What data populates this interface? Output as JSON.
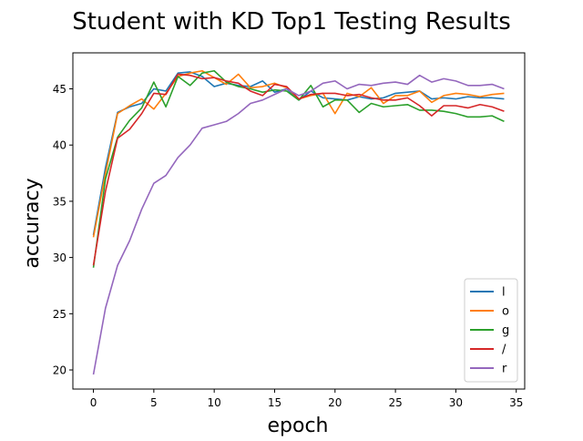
{
  "chart_data": {
    "type": "line",
    "title": "Student with KD Top1 Testing Results",
    "xlabel": "epoch",
    "ylabel": "accuracy",
    "xlim": [
      -1.7,
      35.7
    ],
    "ylim": [
      18.3,
      48.2
    ],
    "xticks": [
      0,
      5,
      10,
      15,
      20,
      25,
      30,
      35
    ],
    "yticks": [
      20,
      25,
      30,
      35,
      40,
      45
    ],
    "grid": false,
    "legend_position": "lower-right",
    "x": [
      0,
      1,
      2,
      3,
      4,
      5,
      6,
      7,
      8,
      9,
      10,
      11,
      12,
      13,
      14,
      15,
      16,
      17,
      18,
      19,
      20,
      21,
      22,
      23,
      24,
      25,
      26,
      27,
      28,
      29,
      30,
      31,
      32,
      33,
      34
    ],
    "series": [
      {
        "name": "l",
        "color": "#1f77b4",
        "values": [
          32.0,
          38.0,
          42.9,
          43.4,
          43.7,
          45.0,
          44.8,
          46.4,
          46.5,
          46.1,
          45.2,
          45.5,
          45.3,
          45.2,
          45.7,
          44.7,
          45.0,
          44.0,
          44.8,
          44.2,
          44.1,
          44.0,
          44.3,
          44.1,
          44.2,
          44.6,
          44.7,
          44.8,
          44.1,
          44.2,
          44.1,
          44.3,
          44.2,
          44.2,
          44.1
        ]
      },
      {
        "name": "o",
        "color": "#ff7f0e",
        "values": [
          31.8,
          37.5,
          42.8,
          43.5,
          44.1,
          43.2,
          44.6,
          46.1,
          46.4,
          46.6,
          46.0,
          45.4,
          46.3,
          45.1,
          45.2,
          45.5,
          45.1,
          44.1,
          44.4,
          44.6,
          42.8,
          44.6,
          44.3,
          45.1,
          43.7,
          44.4,
          44.4,
          44.8,
          43.8,
          44.4,
          44.6,
          44.5,
          44.3,
          44.5,
          44.6
        ]
      },
      {
        "name": "g",
        "color": "#2ca02c",
        "values": [
          29.1,
          37.0,
          40.7,
          42.2,
          43.3,
          45.6,
          43.4,
          46.1,
          45.3,
          46.4,
          46.6,
          45.6,
          45.2,
          45.0,
          44.7,
          44.9,
          44.8,
          44.0,
          45.3,
          43.4,
          44.0,
          44.0,
          42.9,
          43.7,
          43.4,
          43.5,
          43.6,
          43.1,
          43.1,
          43.0,
          42.8,
          42.5,
          42.5,
          42.6,
          42.1
        ]
      },
      {
        "name": "/",
        "color": "#d62728",
        "values": [
          29.3,
          35.9,
          40.6,
          41.4,
          42.8,
          44.6,
          44.5,
          46.3,
          46.2,
          45.9,
          46.0,
          45.7,
          45.5,
          44.8,
          44.4,
          45.4,
          45.2,
          44.1,
          44.5,
          44.6,
          44.6,
          44.4,
          44.5,
          44.2,
          44.0,
          44.0,
          44.2,
          43.5,
          42.6,
          43.5,
          43.5,
          43.3,
          43.6,
          43.4,
          43.0
        ]
      },
      {
        "name": "r",
        "color": "#9467bd",
        "values": [
          19.6,
          25.5,
          29.3,
          31.5,
          34.3,
          36.6,
          37.3,
          38.9,
          40.0,
          41.5,
          41.8,
          42.1,
          42.8,
          43.7,
          44.0,
          44.5,
          45.0,
          44.4,
          44.8,
          45.5,
          45.7,
          45.0,
          45.4,
          45.3,
          45.5,
          45.6,
          45.4,
          46.2,
          45.6,
          45.9,
          45.7,
          45.3,
          45.3,
          45.4,
          45.0
        ]
      }
    ]
  }
}
